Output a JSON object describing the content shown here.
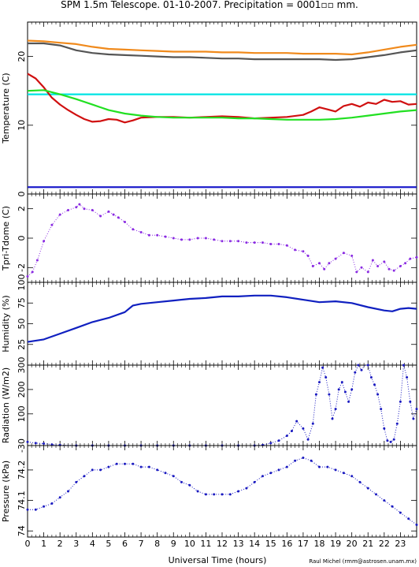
{
  "title": "SPM 1.5m Telescope. 01-10-2007. Precipitation = 0001▫▫ mm.",
  "xlabel": "Universal Time (hours)",
  "credit": "Raul Michel (rmm@astrosen.unam.mx)",
  "x_ticks": [
    "0",
    "1",
    "2",
    "3",
    "4",
    "5",
    "6",
    "7",
    "8",
    "9",
    "10",
    "11",
    "12",
    "13",
    "14",
    "15",
    "16",
    "17",
    "18",
    "19",
    "20",
    "21",
    "22",
    "23"
  ],
  "chart_data": [
    {
      "type": "line",
      "ylabel": "Temperature (C)",
      "xlim": [
        0,
        24
      ],
      "ylim": [
        0,
        25
      ],
      "y_ticks": [
        0,
        10,
        20
      ],
      "series": [
        {
          "color": "#f08a1c",
          "x": [
            0,
            1,
            2,
            3,
            4,
            5,
            6,
            7,
            8,
            9,
            10,
            11,
            12,
            13,
            14,
            15,
            16,
            17,
            18,
            19,
            20,
            21,
            22,
            23,
            24
          ],
          "y": [
            22.3,
            22.2,
            22.0,
            21.8,
            21.4,
            21.1,
            21.0,
            20.9,
            20.8,
            20.7,
            20.7,
            20.7,
            20.6,
            20.6,
            20.5,
            20.5,
            20.5,
            20.4,
            20.4,
            20.4,
            20.3,
            20.6,
            21.0,
            21.4,
            21.7
          ]
        },
        {
          "color": "#555555",
          "x": [
            0,
            1,
            2,
            3,
            4,
            5,
            6,
            7,
            8,
            9,
            10,
            11,
            12,
            13,
            14,
            15,
            16,
            17,
            18,
            19,
            20,
            21,
            22,
            23,
            24
          ],
          "y": [
            21.9,
            21.9,
            21.6,
            20.9,
            20.5,
            20.3,
            20.2,
            20.1,
            20.0,
            19.9,
            19.9,
            19.8,
            19.7,
            19.7,
            19.6,
            19.6,
            19.6,
            19.6,
            19.6,
            19.5,
            19.6,
            19.9,
            20.2,
            20.6,
            20.9
          ]
        },
        {
          "color": "#00e4e4",
          "x": [
            0,
            24
          ],
          "y": [
            14.5,
            14.5
          ]
        },
        {
          "color": "#d01010",
          "x": [
            0,
            0.5,
            1,
            1.5,
            2,
            2.5,
            3,
            3.5,
            4,
            4.5,
            5,
            5.5,
            6,
            6.5,
            7,
            8,
            9,
            10,
            11,
            12,
            13,
            14,
            15,
            16,
            17,
            17.5,
            18,
            18.5,
            19,
            19.5,
            20,
            20.5,
            21,
            21.5,
            22,
            22.5,
            23,
            23.5,
            24
          ],
          "y": [
            17.5,
            16.8,
            15.5,
            14.0,
            13.0,
            12.2,
            11.5,
            10.9,
            10.5,
            10.6,
            10.9,
            10.8,
            10.4,
            10.7,
            11.1,
            11.2,
            11.2,
            11.1,
            11.2,
            11.3,
            11.2,
            11.0,
            11.1,
            11.2,
            11.5,
            12.0,
            12.6,
            12.3,
            12.0,
            12.8,
            13.1,
            12.7,
            13.3,
            13.1,
            13.7,
            13.4,
            13.5,
            13.0,
            13.1
          ]
        },
        {
          "color": "#22e022",
          "x": [
            0,
            1,
            2,
            3,
            4,
            5,
            6,
            7,
            8,
            9,
            10,
            11,
            12,
            13,
            14,
            15,
            16,
            17,
            18,
            19,
            20,
            21,
            22,
            23,
            24
          ],
          "y": [
            15.0,
            15.1,
            14.5,
            13.8,
            13.0,
            12.2,
            11.7,
            11.4,
            11.2,
            11.1,
            11.1,
            11.1,
            11.1,
            11.0,
            11.0,
            10.9,
            10.8,
            10.8,
            10.8,
            10.9,
            11.1,
            11.4,
            11.7,
            12.0,
            12.2
          ]
        },
        {
          "color": "#1010c8",
          "x": [
            0,
            24
          ],
          "y": [
            1.0,
            1.0
          ]
        }
      ]
    },
    {
      "type": "scatter",
      "ylabel": "Tpri-Tdome (C)",
      "xlim": [
        0,
        24
      ],
      "ylim": [
        -3,
        3
      ],
      "y_ticks": [
        -2,
        0,
        2
      ],
      "series": [
        {
          "color": "#8a2be2",
          "x": [
            0,
            0.3,
            0.6,
            1,
            1.5,
            2,
            2.5,
            3,
            3.2,
            3.5,
            4,
            4.5,
            5,
            5.3,
            5.6,
            6,
            6.5,
            7,
            7.5,
            8,
            8.5,
            9,
            9.5,
            10,
            10.5,
            11,
            11.5,
            12,
            12.5,
            13,
            13.5,
            14,
            14.5,
            15,
            15.5,
            16,
            16.5,
            17,
            17.3,
            17.6,
            18,
            18.3,
            18.6,
            19,
            19.5,
            20,
            20.3,
            20.6,
            21,
            21.3,
            21.6,
            22,
            22.3,
            22.6,
            23,
            23.3,
            23.6,
            24
          ],
          "y": [
            -2.6,
            -2.3,
            -1.5,
            -0.2,
            0.9,
            1.6,
            1.9,
            2.1,
            2.3,
            2.0,
            1.9,
            1.5,
            1.8,
            1.6,
            1.4,
            1.1,
            0.6,
            0.4,
            0.2,
            0.2,
            0.1,
            0.0,
            -0.1,
            -0.1,
            0.0,
            0.0,
            -0.1,
            -0.2,
            -0.2,
            -0.2,
            -0.3,
            -0.3,
            -0.3,
            -0.4,
            -0.4,
            -0.5,
            -0.8,
            -0.9,
            -1.2,
            -1.9,
            -1.7,
            -2.1,
            -1.7,
            -1.4,
            -1.0,
            -1.2,
            -2.3,
            -2.0,
            -2.3,
            -1.5,
            -1.9,
            -1.6,
            -2.1,
            -2.2,
            -1.9,
            -1.7,
            -1.4,
            -1.3
          ]
        }
      ]
    },
    {
      "type": "line",
      "ylabel": "Humidity (%)",
      "xlim": [
        0,
        24
      ],
      "ylim": [
        0,
        100
      ],
      "y_ticks": [
        25,
        50,
        75,
        100
      ],
      "series": [
        {
          "color": "#1020c0",
          "x": [
            0,
            1,
            2,
            3,
            4,
            5,
            6,
            6.5,
            7,
            8,
            9,
            10,
            11,
            12,
            13,
            14,
            15,
            16,
            17,
            18,
            19,
            20,
            21,
            22,
            22.5,
            23,
            23.5,
            24
          ],
          "y": [
            28,
            31,
            38,
            45,
            52,
            57,
            64,
            72,
            74,
            76,
            78,
            80,
            81,
            83,
            83,
            84,
            84,
            82,
            79,
            76,
            77,
            75,
            70,
            66,
            65,
            68,
            69,
            68
          ]
        }
      ]
    },
    {
      "type": "scatter",
      "ylabel": "Radiation (W/m2)",
      "xlim": [
        0,
        24
      ],
      "ylim": [
        -30,
        300
      ],
      "y_ticks": [
        -30,
        100,
        200,
        300
      ],
      "series": [
        {
          "color": "#1a1ac0",
          "x": [
            0,
            0.5,
            1,
            1.5,
            2,
            3,
            4,
            5,
            6,
            7,
            8,
            9,
            10,
            11,
            12,
            13,
            14,
            14.5,
            15,
            15.5,
            16,
            16.3,
            16.6,
            17,
            17.3,
            17.6,
            17.8,
            18,
            18.2,
            18.4,
            18.6,
            18.8,
            19,
            19.2,
            19.4,
            19.6,
            19.8,
            20,
            20.2,
            20.4,
            20.6,
            20.8,
            21,
            21.2,
            21.4,
            21.6,
            21.8,
            22,
            22.2,
            22.4,
            22.6,
            22.8,
            23,
            23.2,
            23.4,
            23.6,
            23.8,
            24
          ],
          "y": [
            -15,
            -20,
            -22,
            -26,
            -28,
            -30,
            -30,
            -30,
            -30,
            -30,
            -30,
            -30,
            -30,
            -30,
            -30,
            -30,
            -30,
            -28,
            -20,
            -10,
            10,
            30,
            70,
            40,
            -5,
            60,
            180,
            230,
            290,
            250,
            180,
            80,
            120,
            200,
            230,
            190,
            150,
            200,
            270,
            300,
            280,
            310,
            300,
            250,
            220,
            180,
            120,
            40,
            -10,
            -15,
            -5,
            60,
            150,
            300,
            250,
            150,
            80,
            120
          ]
        }
      ]
    },
    {
      "type": "scatter",
      "ylabel": "Pressure (kPa)",
      "xlim": [
        0,
        24
      ],
      "ylim": [
        73.98,
        74.28
      ],
      "y_ticks": [
        74,
        74.1,
        74.2
      ],
      "series": [
        {
          "color": "#1a1ac0",
          "x": [
            0,
            0.5,
            1,
            1.5,
            2,
            2.5,
            3,
            3.5,
            4,
            4.5,
            5,
            5.5,
            6,
            6.5,
            7,
            7.5,
            8,
            8.5,
            9,
            9.5,
            10,
            10.5,
            11,
            11.5,
            12,
            12.5,
            13,
            13.5,
            14,
            14.5,
            15,
            15.5,
            16,
            16.5,
            17,
            17.5,
            18,
            18.5,
            19,
            19.5,
            20,
            20.5,
            21,
            21.5,
            22,
            22.5,
            23,
            23.5,
            24
          ],
          "y": [
            74.07,
            74.07,
            74.08,
            74.09,
            74.11,
            74.13,
            74.16,
            74.18,
            74.2,
            74.2,
            74.21,
            74.22,
            74.22,
            74.22,
            74.21,
            74.21,
            74.2,
            74.19,
            74.18,
            74.16,
            74.15,
            74.13,
            74.12,
            74.12,
            74.12,
            74.12,
            74.13,
            74.14,
            74.16,
            74.18,
            74.19,
            74.2,
            74.21,
            74.23,
            74.24,
            74.23,
            74.21,
            74.21,
            74.2,
            74.19,
            74.18,
            74.16,
            74.14,
            74.12,
            74.1,
            74.08,
            74.06,
            74.04,
            74.02
          ]
        }
      ]
    }
  ]
}
